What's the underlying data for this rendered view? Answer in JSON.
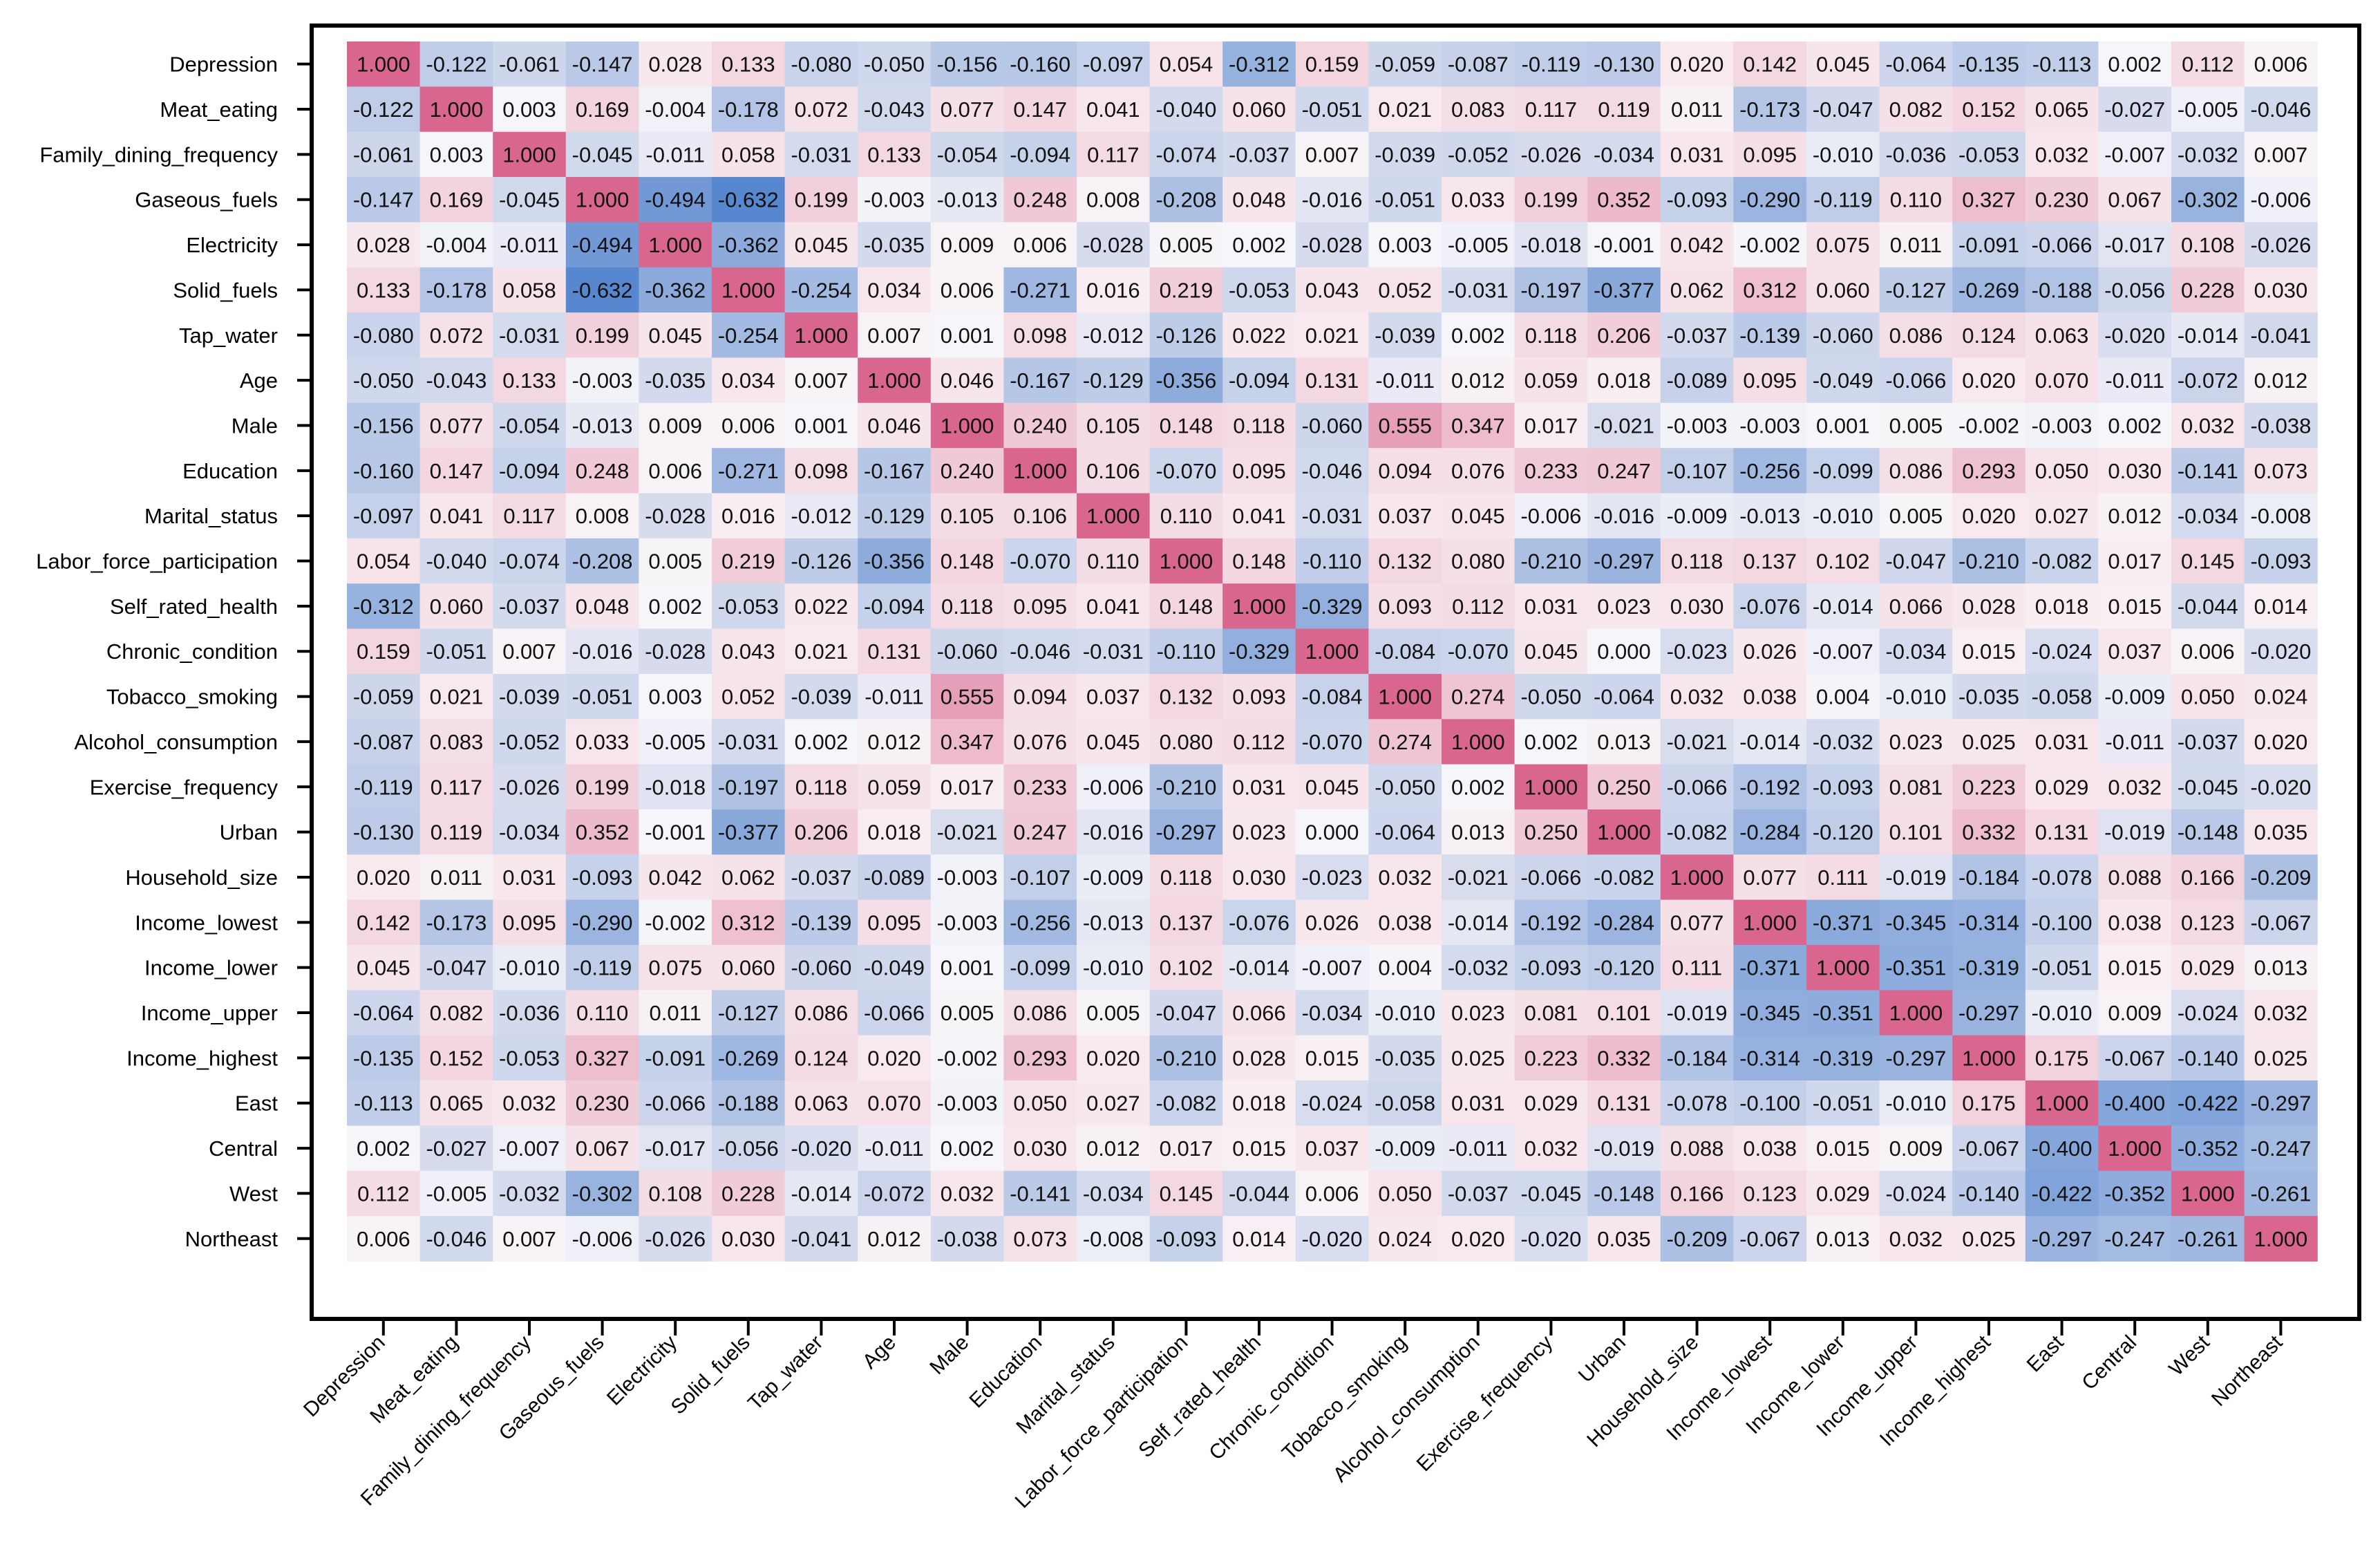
{
  "chart_data": {
    "type": "heatmap",
    "title": "",
    "xlabel": "",
    "ylabel": "",
    "color_scale": {
      "negative": "#4a7fcc",
      "neutral": "#f6f6fa",
      "positive": "#d9668f",
      "range": [
        -1,
        1
      ]
    },
    "variables": [
      "Depression",
      "Meat_eating",
      "Family_dining_frequency",
      "Gaseous_fuels",
      "Electricity",
      "Solid_fuels",
      "Tap_water",
      "Age",
      "Male",
      "Education",
      "Marital_status",
      "Labor_force_participation",
      "Self_rated_health",
      "Chronic_condition",
      "Tobacco_smoking",
      "Alcohol_consumption",
      "Exercise_frequency",
      "Urban",
      "Household_size",
      "Income_lowest",
      "Income_lower",
      "Income_upper",
      "Income_highest",
      "East",
      "Central",
      "West",
      "Northeast"
    ],
    "matrix": [
      [
        "1.000",
        "-0.122",
        "-0.061",
        "-0.147",
        "0.028",
        "0.133",
        "-0.080",
        "-0.050",
        "-0.156",
        "-0.160",
        "-0.097",
        "0.054",
        "-0.312",
        "0.159",
        "-0.059",
        "-0.087",
        "-0.119",
        "-0.130",
        "0.020",
        "0.142",
        "0.045",
        "-0.064",
        "-0.135",
        "-0.113",
        "0.002",
        "0.112",
        "0.006"
      ],
      [
        "-0.122",
        "1.000",
        "0.003",
        "0.169",
        "-0.004",
        "-0.178",
        "0.072",
        "-0.043",
        "0.077",
        "0.147",
        "0.041",
        "-0.040",
        "0.060",
        "-0.051",
        "0.021",
        "0.083",
        "0.117",
        "0.119",
        "0.011",
        "-0.173",
        "-0.047",
        "0.082",
        "0.152",
        "0.065",
        "-0.027",
        "-0.005",
        "-0.046"
      ],
      [
        "-0.061",
        "0.003",
        "1.000",
        "-0.045",
        "-0.011",
        "0.058",
        "-0.031",
        "0.133",
        "-0.054",
        "-0.094",
        "0.117",
        "-0.074",
        "-0.037",
        "0.007",
        "-0.039",
        "-0.052",
        "-0.026",
        "-0.034",
        "0.031",
        "0.095",
        "-0.010",
        "-0.036",
        "-0.053",
        "0.032",
        "-0.007",
        "-0.032",
        "0.007"
      ],
      [
        "-0.147",
        "0.169",
        "-0.045",
        "1.000",
        "-0.494",
        "-0.632",
        "0.199",
        "-0.003",
        "-0.013",
        "0.248",
        "0.008",
        "-0.208",
        "0.048",
        "-0.016",
        "-0.051",
        "0.033",
        "0.199",
        "0.352",
        "-0.093",
        "-0.290",
        "-0.119",
        "0.110",
        "0.327",
        "0.230",
        "0.067",
        "-0.302",
        "-0.006"
      ],
      [
        "0.028",
        "-0.004",
        "-0.011",
        "-0.494",
        "1.000",
        "-0.362",
        "0.045",
        "-0.035",
        "0.009",
        "0.006",
        "-0.028",
        "0.005",
        "0.002",
        "-0.028",
        "0.003",
        "-0.005",
        "-0.018",
        "-0.001",
        "0.042",
        "-0.002",
        "0.075",
        "0.011",
        "-0.091",
        "-0.066",
        "-0.017",
        "0.108",
        "-0.026"
      ],
      [
        "0.133",
        "-0.178",
        "0.058",
        "-0.632",
        "-0.362",
        "1.000",
        "-0.254",
        "0.034",
        "0.006",
        "-0.271",
        "0.016",
        "0.219",
        "-0.053",
        "0.043",
        "0.052",
        "-0.031",
        "-0.197",
        "-0.377",
        "0.062",
        "0.312",
        "0.060",
        "-0.127",
        "-0.269",
        "-0.188",
        "-0.056",
        "0.228",
        "0.030"
      ],
      [
        "-0.080",
        "0.072",
        "-0.031",
        "0.199",
        "0.045",
        "-0.254",
        "1.000",
        "0.007",
        "0.001",
        "0.098",
        "-0.012",
        "-0.126",
        "0.022",
        "0.021",
        "-0.039",
        "0.002",
        "0.118",
        "0.206",
        "-0.037",
        "-0.139",
        "-0.060",
        "0.086",
        "0.124",
        "0.063",
        "-0.020",
        "-0.014",
        "-0.041"
      ],
      [
        "-0.050",
        "-0.043",
        "0.133",
        "-0.003",
        "-0.035",
        "0.034",
        "0.007",
        "1.000",
        "0.046",
        "-0.167",
        "-0.129",
        "-0.356",
        "-0.094",
        "0.131",
        "-0.011",
        "0.012",
        "0.059",
        "0.018",
        "-0.089",
        "0.095",
        "-0.049",
        "-0.066",
        "0.020",
        "0.070",
        "-0.011",
        "-0.072",
        "0.012"
      ],
      [
        "-0.156",
        "0.077",
        "-0.054",
        "-0.013",
        "0.009",
        "0.006",
        "0.001",
        "0.046",
        "1.000",
        "0.240",
        "0.105",
        "0.148",
        "0.118",
        "-0.060",
        "0.555",
        "0.347",
        "0.017",
        "-0.021",
        "-0.003",
        "-0.003",
        "0.001",
        "0.005",
        "-0.002",
        "-0.003",
        "0.002",
        "0.032",
        "-0.038"
      ],
      [
        "-0.160",
        "0.147",
        "-0.094",
        "0.248",
        "0.006",
        "-0.271",
        "0.098",
        "-0.167",
        "0.240",
        "1.000",
        "0.106",
        "-0.070",
        "0.095",
        "-0.046",
        "0.094",
        "0.076",
        "0.233",
        "0.247",
        "-0.107",
        "-0.256",
        "-0.099",
        "0.086",
        "0.293",
        "0.050",
        "0.030",
        "-0.141",
        "0.073"
      ],
      [
        "-0.097",
        "0.041",
        "0.117",
        "0.008",
        "-0.028",
        "0.016",
        "-0.012",
        "-0.129",
        "0.105",
        "0.106",
        "1.000",
        "0.110",
        "0.041",
        "-0.031",
        "0.037",
        "0.045",
        "-0.006",
        "-0.016",
        "-0.009",
        "-0.013",
        "-0.010",
        "0.005",
        "0.020",
        "0.027",
        "0.012",
        "-0.034",
        "-0.008"
      ],
      [
        "0.054",
        "-0.040",
        "-0.074",
        "-0.208",
        "0.005",
        "0.219",
        "-0.126",
        "-0.356",
        "0.148",
        "-0.070",
        "0.110",
        "1.000",
        "0.148",
        "-0.110",
        "0.132",
        "0.080",
        "-0.210",
        "-0.297",
        "0.118",
        "0.137",
        "0.102",
        "-0.047",
        "-0.210",
        "-0.082",
        "0.017",
        "0.145",
        "-0.093"
      ],
      [
        "-0.312",
        "0.060",
        "-0.037",
        "0.048",
        "0.002",
        "-0.053",
        "0.022",
        "-0.094",
        "0.118",
        "0.095",
        "0.041",
        "0.148",
        "1.000",
        "-0.329",
        "0.093",
        "0.112",
        "0.031",
        "0.023",
        "0.030",
        "-0.076",
        "-0.014",
        "0.066",
        "0.028",
        "0.018",
        "0.015",
        "-0.044",
        "0.014"
      ],
      [
        "0.159",
        "-0.051",
        "0.007",
        "-0.016",
        "-0.028",
        "0.043",
        "0.021",
        "0.131",
        "-0.060",
        "-0.046",
        "-0.031",
        "-0.110",
        "-0.329",
        "1.000",
        "-0.084",
        "-0.070",
        "0.045",
        "0.000",
        "-0.023",
        "0.026",
        "-0.007",
        "-0.034",
        "0.015",
        "-0.024",
        "0.037",
        "0.006",
        "-0.020"
      ],
      [
        "-0.059",
        "0.021",
        "-0.039",
        "-0.051",
        "0.003",
        "0.052",
        "-0.039",
        "-0.011",
        "0.555",
        "0.094",
        "0.037",
        "0.132",
        "0.093",
        "-0.084",
        "1.000",
        "0.274",
        "-0.050",
        "-0.064",
        "0.032",
        "0.038",
        "0.004",
        "-0.010",
        "-0.035",
        "-0.058",
        "-0.009",
        "0.050",
        "0.024"
      ],
      [
        "-0.087",
        "0.083",
        "-0.052",
        "0.033",
        "-0.005",
        "-0.031",
        "0.002",
        "0.012",
        "0.347",
        "0.076",
        "0.045",
        "0.080",
        "0.112",
        "-0.070",
        "0.274",
        "1.000",
        "0.002",
        "0.013",
        "-0.021",
        "-0.014",
        "-0.032",
        "0.023",
        "0.025",
        "0.031",
        "-0.011",
        "-0.037",
        "0.020"
      ],
      [
        "-0.119",
        "0.117",
        "-0.026",
        "0.199",
        "-0.018",
        "-0.197",
        "0.118",
        "0.059",
        "0.017",
        "0.233",
        "-0.006",
        "-0.210",
        "0.031",
        "0.045",
        "-0.050",
        "0.002",
        "1.000",
        "0.250",
        "-0.066",
        "-0.192",
        "-0.093",
        "0.081",
        "0.223",
        "0.029",
        "0.032",
        "-0.045",
        "-0.020"
      ],
      [
        "-0.130",
        "0.119",
        "-0.034",
        "0.352",
        "-0.001",
        "-0.377",
        "0.206",
        "0.018",
        "-0.021",
        "0.247",
        "-0.016",
        "-0.297",
        "0.023",
        "0.000",
        "-0.064",
        "0.013",
        "0.250",
        "1.000",
        "-0.082",
        "-0.284",
        "-0.120",
        "0.101",
        "0.332",
        "0.131",
        "-0.019",
        "-0.148",
        "0.035"
      ],
      [
        "0.020",
        "0.011",
        "0.031",
        "-0.093",
        "0.042",
        "0.062",
        "-0.037",
        "-0.089",
        "-0.003",
        "-0.107",
        "-0.009",
        "0.118",
        "0.030",
        "-0.023",
        "0.032",
        "-0.021",
        "-0.066",
        "-0.082",
        "1.000",
        "0.077",
        "0.111",
        "-0.019",
        "-0.184",
        "-0.078",
        "0.088",
        "0.166",
        "-0.209"
      ],
      [
        "0.142",
        "-0.173",
        "0.095",
        "-0.290",
        "-0.002",
        "0.312",
        "-0.139",
        "0.095",
        "-0.003",
        "-0.256",
        "-0.013",
        "0.137",
        "-0.076",
        "0.026",
        "0.038",
        "-0.014",
        "-0.192",
        "-0.284",
        "0.077",
        "1.000",
        "-0.371",
        "-0.345",
        "-0.314",
        "-0.100",
        "0.038",
        "0.123",
        "-0.067"
      ],
      [
        "0.045",
        "-0.047",
        "-0.010",
        "-0.119",
        "0.075",
        "0.060",
        "-0.060",
        "-0.049",
        "0.001",
        "-0.099",
        "-0.010",
        "0.102",
        "-0.014",
        "-0.007",
        "0.004",
        "-0.032",
        "-0.093",
        "-0.120",
        "0.111",
        "-0.371",
        "1.000",
        "-0.351",
        "-0.319",
        "-0.051",
        "0.015",
        "0.029",
        "0.013"
      ],
      [
        "-0.064",
        "0.082",
        "-0.036",
        "0.110",
        "0.011",
        "-0.127",
        "0.086",
        "-0.066",
        "0.005",
        "0.086",
        "0.005",
        "-0.047",
        "0.066",
        "-0.034",
        "-0.010",
        "0.023",
        "0.081",
        "0.101",
        "-0.019",
        "-0.345",
        "-0.351",
        "1.000",
        "-0.297",
        "-0.010",
        "0.009",
        "-0.024",
        "0.032"
      ],
      [
        "-0.135",
        "0.152",
        "-0.053",
        "0.327",
        "-0.091",
        "-0.269",
        "0.124",
        "0.020",
        "-0.002",
        "0.293",
        "0.020",
        "-0.210",
        "0.028",
        "0.015",
        "-0.035",
        "0.025",
        "0.223",
        "0.332",
        "-0.184",
        "-0.314",
        "-0.319",
        "-0.297",
        "1.000",
        "0.175",
        "-0.067",
        "-0.140",
        "0.025"
      ],
      [
        "-0.113",
        "0.065",
        "0.032",
        "0.230",
        "-0.066",
        "-0.188",
        "0.063",
        "0.070",
        "-0.003",
        "0.050",
        "0.027",
        "-0.082",
        "0.018",
        "-0.024",
        "-0.058",
        "0.031",
        "0.029",
        "0.131",
        "-0.078",
        "-0.100",
        "-0.051",
        "-0.010",
        "0.175",
        "1.000",
        "-0.400",
        "-0.422",
        "-0.297"
      ],
      [
        "0.002",
        "-0.027",
        "-0.007",
        "0.067",
        "-0.017",
        "-0.056",
        "-0.020",
        "-0.011",
        "0.002",
        "0.030",
        "0.012",
        "0.017",
        "0.015",
        "0.037",
        "-0.009",
        "-0.011",
        "0.032",
        "-0.019",
        "0.088",
        "0.038",
        "0.015",
        "0.009",
        "-0.067",
        "-0.400",
        "1.000",
        "-0.352",
        "-0.247"
      ],
      [
        "0.112",
        "-0.005",
        "-0.032",
        "-0.302",
        "0.108",
        "0.228",
        "-0.014",
        "-0.072",
        "0.032",
        "-0.141",
        "-0.034",
        "0.145",
        "-0.044",
        "0.006",
        "0.050",
        "-0.037",
        "-0.045",
        "-0.148",
        "0.166",
        "0.123",
        "0.029",
        "-0.024",
        "-0.140",
        "-0.422",
        "-0.352",
        "1.000",
        "-0.261"
      ],
      [
        "0.006",
        "-0.046",
        "0.007",
        "-0.006",
        "-0.026",
        "0.030",
        "-0.041",
        "0.012",
        "-0.038",
        "0.073",
        "-0.008",
        "-0.093",
        "0.014",
        "-0.020",
        "0.024",
        "0.020",
        "-0.020",
        "0.035",
        "-0.209",
        "-0.067",
        "0.013",
        "0.032",
        "0.025",
        "-0.297",
        "-0.247",
        "-0.261",
        "1.000"
      ]
    ]
  }
}
